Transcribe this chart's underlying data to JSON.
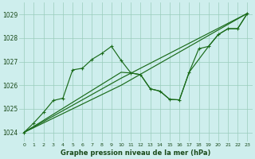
{
  "bg_color": "#ceeeed",
  "grid_color": "#99ccbb",
  "line_color": "#1a6b1a",
  "title": "Graphe pression niveau de la mer (hPa)",
  "xlim": [
    -0.5,
    23.5
  ],
  "ylim": [
    1023.6,
    1029.5
  ],
  "yticks": [
    1024,
    1025,
    1026,
    1027,
    1028,
    1029
  ],
  "xticks": [
    0,
    1,
    2,
    3,
    4,
    5,
    6,
    7,
    8,
    9,
    10,
    11,
    12,
    13,
    14,
    15,
    16,
    17,
    18,
    19,
    20,
    21,
    22,
    23
  ],
  "line1_x": [
    0,
    1,
    2,
    3,
    4,
    5,
    6,
    7,
    8,
    9,
    10,
    11,
    12,
    13,
    14,
    15,
    16,
    17,
    18,
    19,
    20,
    21,
    22,
    23
  ],
  "line1_y": [
    1024.0,
    1024.4,
    1024.85,
    1025.35,
    1025.45,
    1026.65,
    1026.72,
    1027.1,
    1027.35,
    1027.65,
    1027.05,
    1026.52,
    1026.45,
    1025.85,
    1025.75,
    1025.4,
    1025.38,
    1026.55,
    1027.55,
    1027.65,
    1028.15,
    1028.4,
    1028.4,
    1029.05
  ],
  "line2_x": [
    0,
    10,
    11,
    12,
    13,
    14,
    15,
    16,
    17,
    19,
    20,
    21,
    22,
    23
  ],
  "line2_y": [
    1024.0,
    1026.55,
    1026.52,
    1026.45,
    1025.85,
    1025.75,
    1025.4,
    1025.38,
    1026.55,
    1027.65,
    1028.15,
    1028.4,
    1028.4,
    1029.05
  ],
  "line3_x": [
    0,
    10,
    23
  ],
  "line3_y": [
    1024.0,
    1026.3,
    1029.05
  ],
  "line4_x": [
    0,
    10,
    23
  ],
  "line4_y": [
    1024.0,
    1026.0,
    1029.05
  ]
}
